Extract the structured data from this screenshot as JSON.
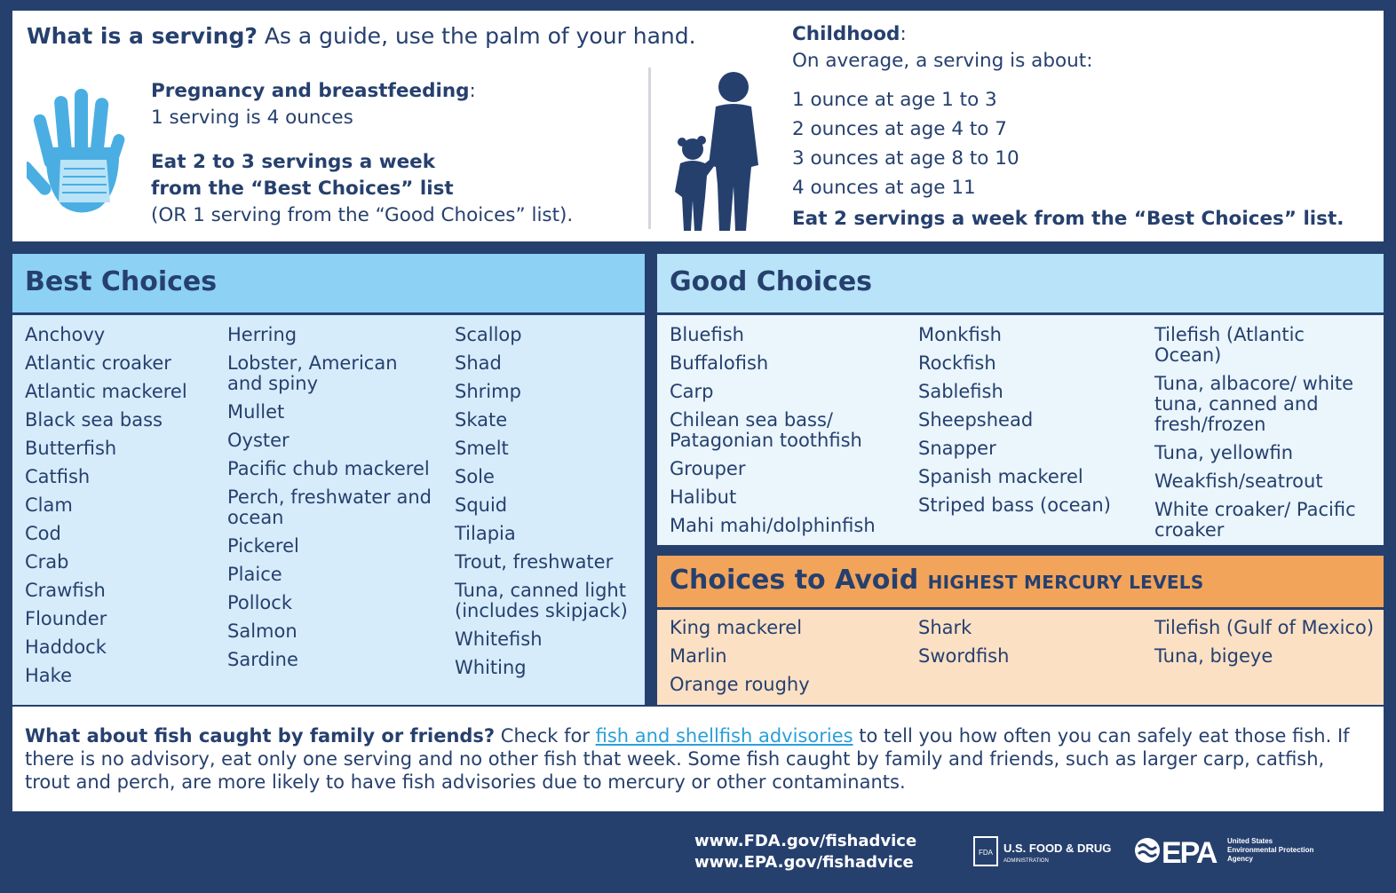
{
  "serving": {
    "question": "What is a serving?",
    "guide": "As a guide, use the palm of your hand.",
    "pregnancy": {
      "heading": "Pregnancy and breastfeeding",
      "colon": ":",
      "serving_size": "1 serving is 4 ounces",
      "eat_line1": "Eat 2 to 3 servings a week",
      "eat_line2": "from the “Best Choices” list",
      "alt": "(OR 1 serving from the “Good Choices” list)."
    },
    "childhood": {
      "heading": "Childhood",
      "colon": ":",
      "intro": "On average, a serving is about:",
      "ages": [
        "1 ounce at age 1 to 3",
        "2 ounces at age 4 to 7",
        "3 ounces at age 8 to 10",
        "4 ounces at age 11"
      ],
      "eat": "Eat 2 servings a week from the “Best Choices” list."
    }
  },
  "best": {
    "title": "Best Choices",
    "col1": [
      "Anchovy",
      "Atlantic croaker",
      "Atlantic mackerel",
      "Black sea bass",
      "Butterfish",
      "Catfish",
      "Clam",
      "Cod",
      "Crab",
      "Crawfish",
      "Flounder",
      "Haddock",
      "Hake"
    ],
    "col2": [
      "Herring",
      "Lobster, American and spiny",
      "Mullet",
      "Oyster",
      "Pacific chub mackerel",
      "Perch, freshwater and ocean",
      "Pickerel",
      "Plaice",
      "Pollock",
      "Salmon",
      "Sardine"
    ],
    "col3": [
      "Scallop",
      "Shad",
      "Shrimp",
      "Skate",
      "Smelt",
      "Sole",
      "Squid",
      "Tilapia",
      "Trout, freshwater",
      "Tuna, canned light (includes skipjack)",
      "Whitefish",
      "Whiting"
    ]
  },
  "good": {
    "title": "Good Choices",
    "col1": [
      "Bluefish",
      "Buffalofish",
      "Carp",
      "Chilean sea bass/ Patagonian toothfish",
      "Grouper",
      "Halibut",
      "Mahi mahi/dolphinfish"
    ],
    "col2": [
      "Monkfish",
      "Rockfish",
      "Sablefish",
      "Sheepshead",
      "Snapper",
      "Spanish mackerel",
      "Striped bass (ocean)"
    ],
    "col3": [
      "Tilefish (Atlantic Ocean)",
      "Tuna, albacore/ white tuna, canned and fresh/frozen",
      "Tuna, yellowfin",
      "Weakfish/seatrout",
      "White croaker/ Pacific croaker"
    ]
  },
  "avoid": {
    "title": "Choices to Avoid",
    "subtitle": "HIGHEST MERCURY LEVELS",
    "col1": [
      "King mackerel",
      "Marlin",
      "Orange roughy"
    ],
    "col2": [
      "Shark",
      "Swordfish"
    ],
    "col3": [
      "Tilefish (Gulf of Mexico)",
      "Tuna, bigeye"
    ]
  },
  "footer": {
    "question": "What about fish caught by family or friends?",
    "text_before": "Check for",
    "link": "fish and shellfish advisories",
    "text_after": "to tell you how often you can safely eat those fish. If there is no advisory, eat only one serving and no other fish that week. Some fish caught by family and friends, such as larger carp, catfish, trout and perch, are more likely to have fish advisories due to mercury or other contaminants."
  },
  "links": {
    "fda_url": "www.FDA.gov/fishadvice",
    "epa_url": "www.EPA.gov/fishadvice"
  },
  "logos": {
    "fda_mark": "FDA",
    "fda_name": "U.S. FOOD & DRUG",
    "fda_sub": "ADMINISTRATION",
    "epa_mark": "EPA",
    "epa_line1": "United States",
    "epa_line2": "Environmental Protection",
    "epa_line3": "Agency"
  },
  "colors": {
    "navy": "#26406e",
    "best_header": "#8dd1f5",
    "good_header": "#b8e3f8",
    "avoid_header": "#f2a45a",
    "link": "#2a9fd8"
  }
}
